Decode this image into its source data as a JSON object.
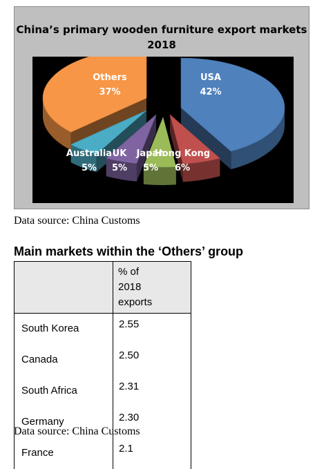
{
  "chart_data": {
    "type": "pie",
    "title": "China’s primary wooden furniture export markets 2018",
    "slices": [
      {
        "label": "USA",
        "value": 42,
        "value_label": "42%",
        "color": "#4f81bd"
      },
      {
        "label": "Hong Kong",
        "value": 6,
        "value_label": "6%",
        "color": "#c0504d"
      },
      {
        "label": "Japan",
        "value": 5,
        "value_label": "5%",
        "color": "#9bbb59"
      },
      {
        "label": "UK",
        "value": 5,
        "value_label": "5%",
        "color": "#8064a2"
      },
      {
        "label": "Australia",
        "value": 5,
        "value_label": "5%",
        "color": "#4bacc6"
      },
      {
        "label": "Others",
        "value": 37,
        "value_label": "37%",
        "color": "#f79646"
      }
    ]
  },
  "chart_source": "Data source: China Customs",
  "table": {
    "heading": "Main markets within the ‘Others’ group",
    "header_country": "",
    "header_pct_lines": [
      "% of",
      "2018",
      "exports"
    ],
    "rows": [
      {
        "country": "South Korea",
        "pct": "2.55"
      },
      {
        "country": "Canada",
        "pct": "2.50"
      },
      {
        "country": "South Africa",
        "pct": "2.31"
      },
      {
        "country": "Germany",
        "pct": "2.30"
      },
      {
        "country": "France",
        "pct": "2.1"
      }
    ]
  },
  "table_source": "Data source: China Customs"
}
